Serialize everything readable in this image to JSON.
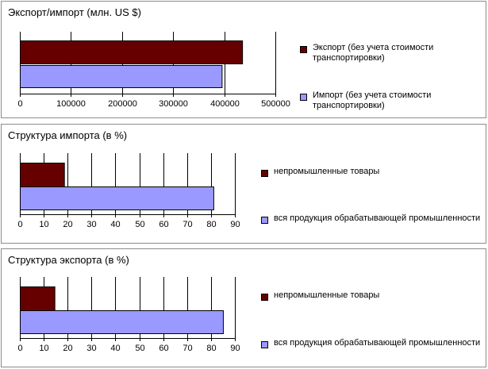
{
  "chart_data": [
    {
      "type": "bar",
      "orientation": "horizontal",
      "title": "Экспорт/импорт (млн. US $)",
      "xlim": [
        0,
        500000
      ],
      "xticks": [
        0,
        100000,
        200000,
        300000,
        400000,
        500000
      ],
      "grid": true,
      "legend_position": "right",
      "series": [
        {
          "name": "Экспорт (без учета стоимости транспортировки)",
          "values": [
            435000
          ],
          "color": "#660000"
        },
        {
          "name": "Импорт (без учета стоимости транспортировки)",
          "values": [
            395000
          ],
          "color": "#9999ff"
        }
      ]
    },
    {
      "type": "bar",
      "orientation": "horizontal",
      "title": "Структура импорта (в %)",
      "xlim": [
        0,
        90
      ],
      "xticks": [
        0,
        10,
        20,
        30,
        40,
        50,
        60,
        70,
        80,
        90
      ],
      "grid": true,
      "legend_position": "right",
      "series": [
        {
          "name": "непромышленные товары",
          "values": [
            18.5
          ],
          "color": "#660000"
        },
        {
          "name": "вся продукция обрабатывающей промышленности",
          "values": [
            81
          ],
          "color": "#9999ff"
        }
      ]
    },
    {
      "type": "bar",
      "orientation": "horizontal",
      "title": "Структура экспорта (в %)",
      "xlim": [
        0,
        90
      ],
      "xticks": [
        0,
        10,
        20,
        30,
        40,
        50,
        60,
        70,
        80,
        90
      ],
      "grid": true,
      "legend_position": "right",
      "series": [
        {
          "name": "непромышленные товары",
          "values": [
            14.5
          ],
          "color": "#660000"
        },
        {
          "name": "вся продукция обрабатывающей промышленности",
          "values": [
            85
          ],
          "color": "#9999ff"
        }
      ]
    }
  ]
}
